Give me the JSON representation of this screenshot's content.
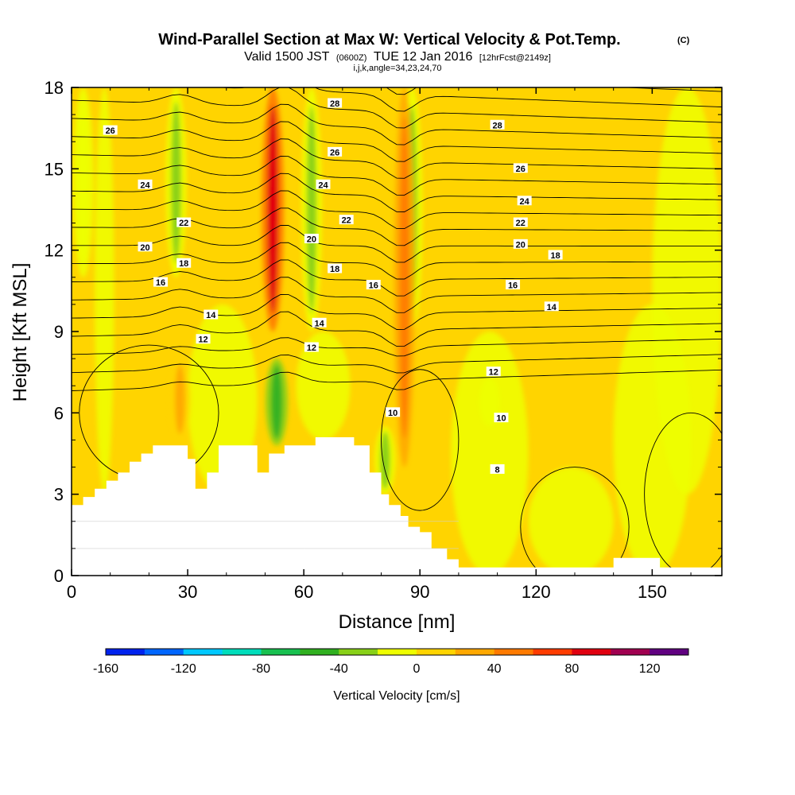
{
  "chart_data": {
    "type": "contour",
    "title": "Wind-Parallel Section at Max W: Vertical Velocity & Pot.Temp.",
    "title_mark": "(C)",
    "subtitle_parts": [
      "Valid 1500 JST",
      "(0600Z)",
      "TUE 12 Jan 2016",
      "[12hrFcst@2149z]"
    ],
    "subtitle2": "i,j,k,angle=34,23,24,70",
    "xlabel": "Distance [nm]",
    "ylabel": "Height [Kft MSL]",
    "xlim": [
      0,
      168
    ],
    "ylim": [
      0,
      18
    ],
    "x_ticks": [
      "0",
      "30",
      "60",
      "90",
      "120",
      "150"
    ],
    "y_ticks": [
      "0",
      "3",
      "6",
      "9",
      "12",
      "15",
      "18"
    ],
    "grid": false,
    "colorbar": {
      "label": "Vertical Velocity [cm/s]",
      "min": -160,
      "max": 140,
      "step": 20,
      "tick_labels": [
        "-160",
        "-120",
        "-80",
        "-40",
        "0",
        "40",
        "80",
        "120"
      ],
      "colors": [
        "#0022ee",
        "#0066ff",
        "#00c8ff",
        "#00ddbb",
        "#18c050",
        "#30b020",
        "#88d018",
        "#eeff00",
        "#ffd400",
        "#ffa800",
        "#ff7a00",
        "#ff3c00",
        "#e00010",
        "#a00050",
        "#600080"
      ]
    },
    "series": [
      {
        "name": "Pot.Temp. contours",
        "x_reference": "left edge",
        "contours": [
          {
            "value": 8,
            "label_at": [
              110,
              3.9
            ]
          },
          {
            "value": 10,
            "label_at": [
              83,
              6.0
            ]
          },
          {
            "value": 10,
            "label_at": [
              111,
              5.8
            ]
          },
          {
            "value": 12,
            "label_at": [
              34,
              8.7
            ]
          },
          {
            "value": 12,
            "label_at": [
              62,
              8.4
            ]
          },
          {
            "value": 12,
            "label_at": [
              109,
              7.5
            ]
          },
          {
            "value": 14,
            "label_at": [
              36,
              9.6
            ]
          },
          {
            "value": 14,
            "label_at": [
              64,
              9.3
            ]
          },
          {
            "value": 14,
            "label_at": [
              124,
              9.9
            ]
          },
          {
            "value": 16,
            "label_at": [
              23,
              10.8
            ]
          },
          {
            "value": 16,
            "label_at": [
              78,
              10.7
            ]
          },
          {
            "value": 16,
            "label_at": [
              114,
              10.7
            ]
          },
          {
            "value": 18,
            "label_at": [
              29,
              11.5
            ]
          },
          {
            "value": 18,
            "label_at": [
              68,
              11.3
            ]
          },
          {
            "value": 18,
            "label_at": [
              125,
              11.8
            ]
          },
          {
            "value": 20,
            "label_at": [
              19,
              12.1
            ]
          },
          {
            "value": 20,
            "label_at": [
              62,
              12.4
            ]
          },
          {
            "value": 20,
            "label_at": [
              116,
              12.2
            ]
          },
          {
            "value": 22,
            "label_at": [
              29,
              13.0
            ]
          },
          {
            "value": 22,
            "label_at": [
              71,
              13.1
            ]
          },
          {
            "value": 22,
            "label_at": [
              116,
              13.0
            ]
          },
          {
            "value": 24,
            "label_at": [
              19,
              14.4
            ]
          },
          {
            "value": 24,
            "label_at": [
              65,
              14.4
            ]
          },
          {
            "value": 24,
            "label_at": [
              117,
              13.8
            ]
          },
          {
            "value": 26,
            "label_at": [
              10,
              16.4
            ]
          },
          {
            "value": 26,
            "label_at": [
              68,
              15.6
            ]
          },
          {
            "value": 26,
            "label_at": [
              116,
              15.0
            ]
          },
          {
            "value": 28,
            "label_at": [
              68,
              17.4
            ]
          },
          {
            "value": 28,
            "label_at": [
              110,
              16.6
            ]
          }
        ]
      },
      {
        "name": "Vertical Velocity features",
        "features": [
          {
            "x": 52,
            "y_range": [
              9,
              18
            ],
            "w_cm_s": 80
          },
          {
            "x": 27,
            "y_range": [
              11,
              18
            ],
            "w_cm_s": -40
          },
          {
            "x": 62,
            "y_range": [
              9,
              18
            ],
            "w_cm_s": -30
          },
          {
            "x": 88,
            "y_range": [
              9,
              18
            ],
            "w_cm_s": -40
          },
          {
            "x": 53,
            "y_range": [
              4.8,
              8
            ],
            "w_cm_s": -60
          },
          {
            "x": 81,
            "y_range": [
              3,
              5.5
            ],
            "w_cm_s": -30
          },
          {
            "x": 108,
            "y_range": [
              5.5,
              7.3
            ],
            "w_cm_s": -20
          },
          {
            "x": 3,
            "y_range": [
              11,
              18
            ],
            "w_cm_s": -20
          },
          {
            "x": 86,
            "y_range": [
              4,
              18
            ],
            "w_cm_s": 40
          },
          {
            "x": 28,
            "y_range": [
              5,
              8
            ],
            "w_cm_s": 30
          }
        ]
      },
      {
        "name": "Terrain height (Kft)",
        "x": [
          0,
          3,
          6,
          9,
          12,
          15,
          18,
          21,
          24,
          30,
          32,
          35,
          38,
          45,
          48,
          51,
          55,
          60,
          63,
          67,
          73,
          77,
          80,
          82,
          85,
          87,
          90,
          93,
          97,
          100,
          120,
          138,
          140,
          150,
          152,
          168
        ],
        "values": [
          2.6,
          2.9,
          3.2,
          3.5,
          3.8,
          4.2,
          4.5,
          4.8,
          4.8,
          4.3,
          3.2,
          3.8,
          4.8,
          4.8,
          3.8,
          4.5,
          4.8,
          4.8,
          5.1,
          5.1,
          4.8,
          3.8,
          3.0,
          2.6,
          2.2,
          1.8,
          1.6,
          1.0,
          0.6,
          0.3,
          0.3,
          0.3,
          0.65,
          0.65,
          0.3,
          0.3
        ]
      }
    ]
  }
}
